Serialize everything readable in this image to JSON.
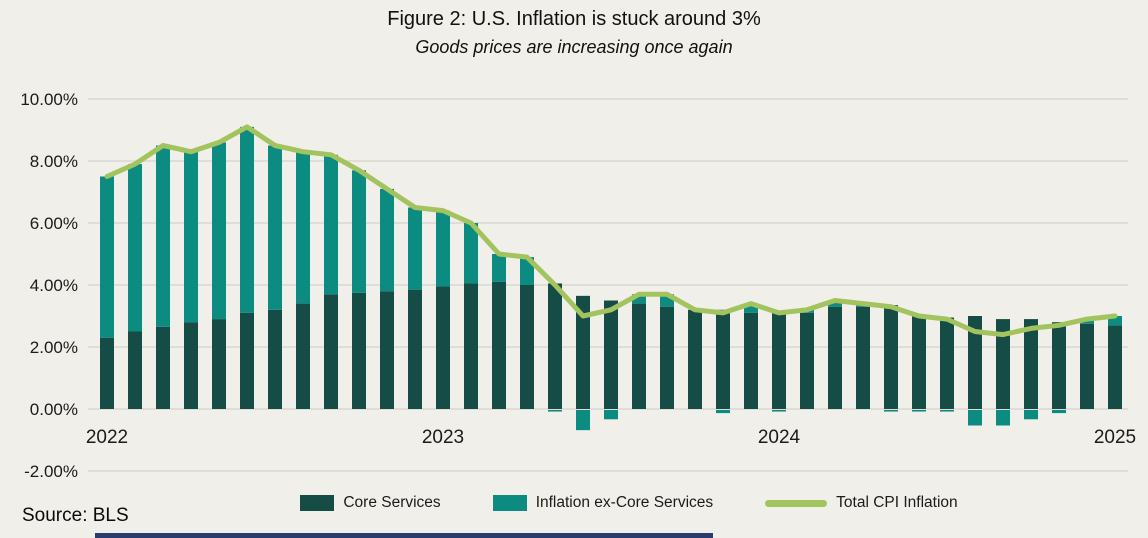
{
  "title": "Figure 2: U.S. Inflation is stuck around 3%",
  "subtitle": "Goods prices are increasing once again",
  "source": "Source: BLS",
  "colors": {
    "background": "#f0efea",
    "core_services": "#154d46",
    "ex_core_services": "#0c8b80",
    "total_line": "#a3c35e",
    "gridline": "#d7d7d3",
    "text": "#1b1b1b",
    "accent_bar": "#2c3b6e"
  },
  "legend": [
    {
      "label": "Core Services",
      "type": "swatch",
      "color": "#154d46"
    },
    {
      "label": "Inflation ex-Core Services",
      "type": "swatch",
      "color": "#0c8b80"
    },
    {
      "label": "Total CPI Inflation",
      "type": "line",
      "color": "#a3c35e"
    }
  ],
  "chart_data": {
    "type": "bar",
    "subtype": "stacked-bars-with-line-overlay",
    "categories": [
      "Jan 2022",
      "Feb 2022",
      "Mar 2022",
      "Apr 2022",
      "May 2022",
      "Jun 2022",
      "Jul 2022",
      "Aug 2022",
      "Sep 2022",
      "Oct 2022",
      "Nov 2022",
      "Dec 2022",
      "Jan 2023",
      "Feb 2023",
      "Mar 2023",
      "Apr 2023",
      "May 2023",
      "Jun 2023",
      "Jul 2023",
      "Aug 2023",
      "Sep 2023",
      "Oct 2023",
      "Nov 2023",
      "Dec 2023",
      "Jan 2024",
      "Feb 2024",
      "Mar 2024",
      "Apr 2024",
      "May 2024",
      "Jun 2024",
      "Jul 2024",
      "Aug 2024",
      "Sep 2024",
      "Oct 2024",
      "Nov 2024",
      "Dec 2024",
      "Jan 2025"
    ],
    "series": [
      {
        "name": "Core Services",
        "type": "bar-stacked",
        "color": "#154d46",
        "values": [
          2.3,
          2.5,
          2.65,
          2.8,
          2.9,
          3.1,
          3.2,
          3.4,
          3.7,
          3.75,
          3.8,
          3.85,
          3.95,
          4.05,
          4.1,
          4.0,
          4.05,
          3.65,
          3.5,
          3.4,
          3.3,
          3.2,
          3.2,
          3.1,
          3.15,
          3.1,
          3.3,
          3.3,
          3.35,
          3.05,
          2.95,
          3.0,
          2.9,
          2.9,
          2.8,
          2.75,
          2.7
        ]
      },
      {
        "name": "Inflation ex-Core Services",
        "type": "bar-stacked",
        "color": "#0c8b80",
        "values": [
          5.2,
          5.4,
          5.85,
          5.5,
          5.7,
          6.0,
          5.3,
          4.9,
          4.5,
          3.95,
          3.3,
          2.65,
          2.45,
          1.95,
          0.9,
          0.9,
          -0.05,
          -0.65,
          -0.3,
          0.3,
          0.4,
          0.0,
          -0.1,
          0.3,
          -0.05,
          0.1,
          0.2,
          0.1,
          -0.05,
          -0.05,
          -0.05,
          -0.5,
          -0.5,
          -0.3,
          -0.1,
          0.15,
          0.3
        ]
      },
      {
        "name": "Total CPI Inflation",
        "type": "line",
        "color": "#a3c35e",
        "values": [
          7.5,
          7.9,
          8.5,
          8.3,
          8.6,
          9.1,
          8.5,
          8.3,
          8.2,
          7.7,
          7.1,
          6.5,
          6.4,
          6.0,
          5.0,
          4.9,
          4.0,
          3.0,
          3.2,
          3.7,
          3.7,
          3.2,
          3.1,
          3.4,
          3.1,
          3.2,
          3.5,
          3.4,
          3.3,
          3.0,
          2.9,
          2.5,
          2.4,
          2.6,
          2.7,
          2.9,
          3.0
        ]
      }
    ],
    "title": "Figure 2: U.S. Inflation is stuck around 3%",
    "xlabel": "",
    "ylabel": "",
    "ylim": [
      -2,
      10
    ],
    "yticks": [
      10,
      8,
      6,
      4,
      2,
      0,
      -2
    ],
    "ytick_labels": [
      "10.00%",
      "8.00%",
      "6.00%",
      "4.00%",
      "2.00%",
      "0.00%",
      "-2.00%"
    ],
    "xtick_labels": [
      "2022",
      "2023",
      "2024",
      "2025"
    ],
    "xtick_indices": [
      0,
      12,
      24,
      36
    ],
    "grid": true,
    "legend_position": "bottom"
  }
}
